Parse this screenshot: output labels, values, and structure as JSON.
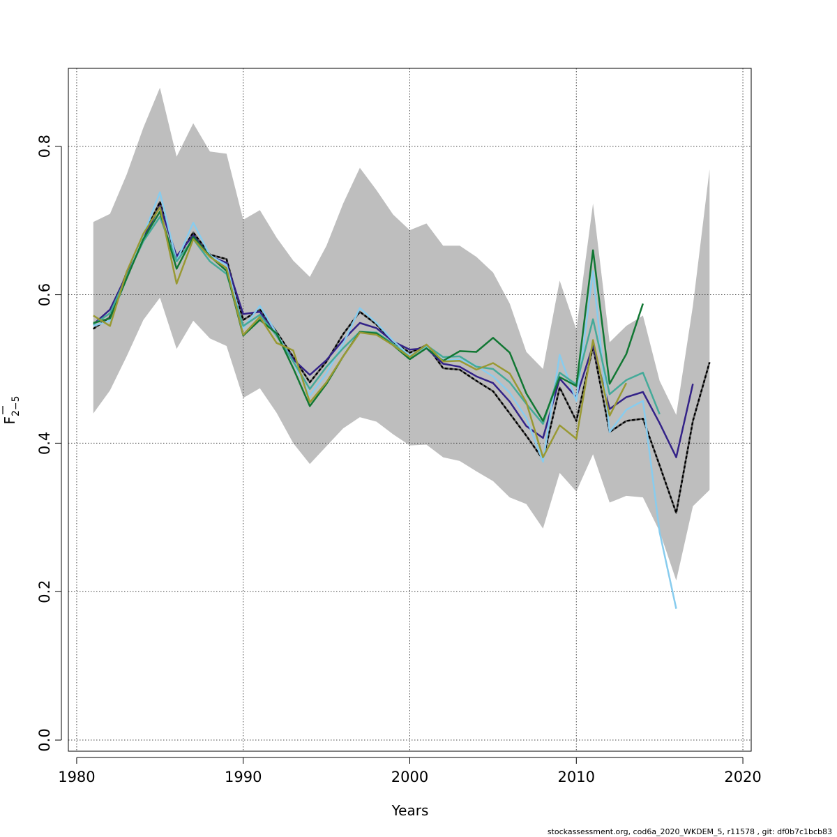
{
  "chart_data": {
    "type": "line",
    "title": "",
    "xlabel": "Years",
    "ylabel": "F",
    "ylabel_subscript": "2−5",
    "xlim": [
      1979.5,
      2020.5
    ],
    "ylim": [
      -0.015,
      0.905
    ],
    "grid": true,
    "x_ticks": [
      1980,
      1990,
      2000,
      2010,
      2020
    ],
    "y_ticks": [
      0.0,
      0.2,
      0.4,
      0.6,
      0.8
    ],
    "x_tick_labels": [
      "1980",
      "1990",
      "2000",
      "2010",
      "2020"
    ],
    "y_tick_labels": [
      "0.0",
      "0.2",
      "0.4",
      "0.6",
      "0.8"
    ],
    "confidence_band": {
      "color": "#bebebe",
      "x": [
        1981,
        1982,
        1983,
        1984,
        1985,
        1986,
        1987,
        1988,
        1989,
        1990,
        1991,
        1992,
        1993,
        1994,
        1995,
        1996,
        1997,
        1998,
        1999,
        2000,
        2001,
        2002,
        2003,
        2004,
        2005,
        2006,
        2007,
        2008,
        2009,
        2010,
        2011,
        2012,
        2013,
        2014,
        2015,
        2016,
        2017,
        2018
      ],
      "upper": [
        0.698,
        0.709,
        0.762,
        0.825,
        0.879,
        0.786,
        0.831,
        0.793,
        0.79,
        0.701,
        0.714,
        0.677,
        0.646,
        0.624,
        0.666,
        0.723,
        0.771,
        0.741,
        0.708,
        0.687,
        0.696,
        0.666,
        0.666,
        0.651,
        0.63,
        0.588,
        0.523,
        0.5,
        0.619,
        0.553,
        0.723,
        0.536,
        0.558,
        0.572,
        0.484,
        0.438,
        0.585,
        0.769
      ],
      "lower": [
        0.44,
        0.471,
        0.517,
        0.566,
        0.596,
        0.527,
        0.565,
        0.541,
        0.531,
        0.461,
        0.474,
        0.441,
        0.4,
        0.372,
        0.396,
        0.42,
        0.435,
        0.429,
        0.412,
        0.397,
        0.398,
        0.381,
        0.376,
        0.362,
        0.349,
        0.327,
        0.318,
        0.285,
        0.36,
        0.335,
        0.385,
        0.32,
        0.329,
        0.327,
        0.281,
        0.215,
        0.315,
        0.337
      ]
    },
    "series": [
      {
        "color": "#000000",
        "dashed": true,
        "x": [
          1981,
          1982,
          1983,
          1984,
          1985,
          1986,
          1987,
          1988,
          1989,
          1990,
          1991,
          1992,
          1993,
          1994,
          1995,
          1996,
          1997,
          1998,
          1999,
          2000,
          2001,
          2002,
          2003,
          2004,
          2005,
          2006,
          2007,
          2008,
          2009,
          2010,
          2011,
          2012,
          2013,
          2014,
          2015,
          2016,
          2017,
          2018
        ],
        "values": [
          0.554,
          0.57,
          0.63,
          0.679,
          0.725,
          0.647,
          0.684,
          0.654,
          0.648,
          0.566,
          0.58,
          0.55,
          0.516,
          0.482,
          0.51,
          0.547,
          0.577,
          0.56,
          0.536,
          0.522,
          0.532,
          0.501,
          0.499,
          0.484,
          0.47,
          0.44,
          0.41,
          0.378,
          0.475,
          0.43,
          0.53,
          0.415,
          0.43,
          0.433,
          0.37,
          0.306,
          0.43,
          0.509
        ]
      },
      {
        "color": "#332288",
        "dashed": false,
        "x": [
          1981,
          1982,
          1983,
          1984,
          1985,
          1986,
          1987,
          1988,
          1989,
          1990,
          1991,
          1992,
          1993,
          1994,
          1995,
          1996,
          1997,
          1998,
          1999,
          2000,
          2001,
          2002,
          2003,
          2004,
          2005,
          2006,
          2007,
          2008,
          2009,
          2010,
          2011,
          2012,
          2013,
          2014,
          2015,
          2016,
          2017
        ],
        "values": [
          0.56,
          0.58,
          0.627,
          0.676,
          0.72,
          0.652,
          0.68,
          0.652,
          0.643,
          0.574,
          0.577,
          0.545,
          0.513,
          0.492,
          0.512,
          0.539,
          0.562,
          0.555,
          0.537,
          0.526,
          0.528,
          0.507,
          0.503,
          0.49,
          0.481,
          0.456,
          0.423,
          0.407,
          0.487,
          0.462,
          0.532,
          0.446,
          0.462,
          0.469,
          0.427,
          0.381,
          0.48
        ]
      },
      {
        "color": "#88CCEE",
        "dashed": false,
        "x": [
          1981,
          1982,
          1983,
          1984,
          1985,
          1986,
          1987,
          1988,
          1989,
          1990,
          1991,
          1992,
          1993,
          1994,
          1995,
          1996,
          1997,
          1998,
          1999,
          2000,
          2001,
          2002,
          2003,
          2004,
          2005,
          2006,
          2007,
          2008,
          2009,
          2010,
          2011,
          2012,
          2013,
          2014,
          2015,
          2016
        ],
        "values": [
          0.558,
          0.565,
          0.622,
          0.68,
          0.738,
          0.645,
          0.697,
          0.653,
          0.64,
          0.555,
          0.585,
          0.548,
          0.51,
          0.464,
          0.494,
          0.534,
          0.582,
          0.562,
          0.538,
          0.518,
          0.53,
          0.512,
          0.513,
          0.504,
          0.49,
          0.468,
          0.434,
          0.375,
          0.519,
          0.457,
          0.632,
          0.415,
          0.445,
          0.457,
          0.28,
          0.177
        ]
      },
      {
        "color": "#44AA99",
        "dashed": false,
        "x": [
          1981,
          1982,
          1983,
          1984,
          1985,
          1986,
          1987,
          1988,
          1989,
          1990,
          1991,
          1992,
          1993,
          1994,
          1995,
          1996,
          1997,
          1998,
          1999,
          2000,
          2001,
          2002,
          2003,
          2004,
          2005,
          2006,
          2007,
          2008,
          2009,
          2010,
          2011,
          2012,
          2013,
          2014,
          2015
        ],
        "values": [
          0.56,
          0.575,
          0.625,
          0.672,
          0.705,
          0.645,
          0.675,
          0.645,
          0.628,
          0.558,
          0.573,
          0.545,
          0.51,
          0.473,
          0.503,
          0.528,
          0.55,
          0.549,
          0.534,
          0.516,
          0.532,
          0.516,
          0.517,
          0.503,
          0.5,
          0.482,
          0.453,
          0.426,
          0.495,
          0.479,
          0.567,
          0.466,
          0.485,
          0.495,
          0.439
        ]
      },
      {
        "color": "#117733",
        "dashed": false,
        "x": [
          1981,
          1982,
          1983,
          1984,
          1985,
          1986,
          1987,
          1988,
          1989,
          1990,
          1991,
          1992,
          1993,
          1994,
          1995,
          1996,
          1997,
          1998,
          1999,
          2000,
          2001,
          2002,
          2003,
          2004,
          2005,
          2006,
          2007,
          2008,
          2009,
          2010,
          2011,
          2012,
          2013,
          2014
        ],
        "values": [
          0.562,
          0.568,
          0.622,
          0.675,
          0.712,
          0.635,
          0.678,
          0.652,
          0.632,
          0.545,
          0.566,
          0.548,
          0.501,
          0.45,
          0.48,
          0.517,
          0.55,
          0.548,
          0.532,
          0.513,
          0.528,
          0.511,
          0.524,
          0.523,
          0.542,
          0.522,
          0.467,
          0.43,
          0.489,
          0.477,
          0.66,
          0.48,
          0.52,
          0.588
        ]
      },
      {
        "color": "#999933",
        "dashed": false,
        "x": [
          1981,
          1982,
          1983,
          1984,
          1985,
          1986,
          1987,
          1988,
          1989,
          1990,
          1991,
          1992,
          1993,
          1994,
          1995,
          1996,
          1997,
          1998,
          1999,
          2000,
          2001,
          2002,
          2003,
          2004,
          2005,
          2006,
          2007,
          2008,
          2009,
          2010,
          2011,
          2012,
          2013
        ],
        "values": [
          0.572,
          0.558,
          0.631,
          0.682,
          0.718,
          0.615,
          0.675,
          0.651,
          0.636,
          0.546,
          0.57,
          0.535,
          0.525,
          0.455,
          0.482,
          0.517,
          0.549,
          0.546,
          0.532,
          0.516,
          0.533,
          0.51,
          0.511,
          0.499,
          0.508,
          0.494,
          0.455,
          0.381,
          0.424,
          0.406,
          0.539,
          0.437,
          0.481
        ]
      }
    ]
  },
  "footer": {
    "note": "stockassessment.org, cod6a_2020_WKDEM_5, r11578 , git: df0b7c1bcb83"
  }
}
